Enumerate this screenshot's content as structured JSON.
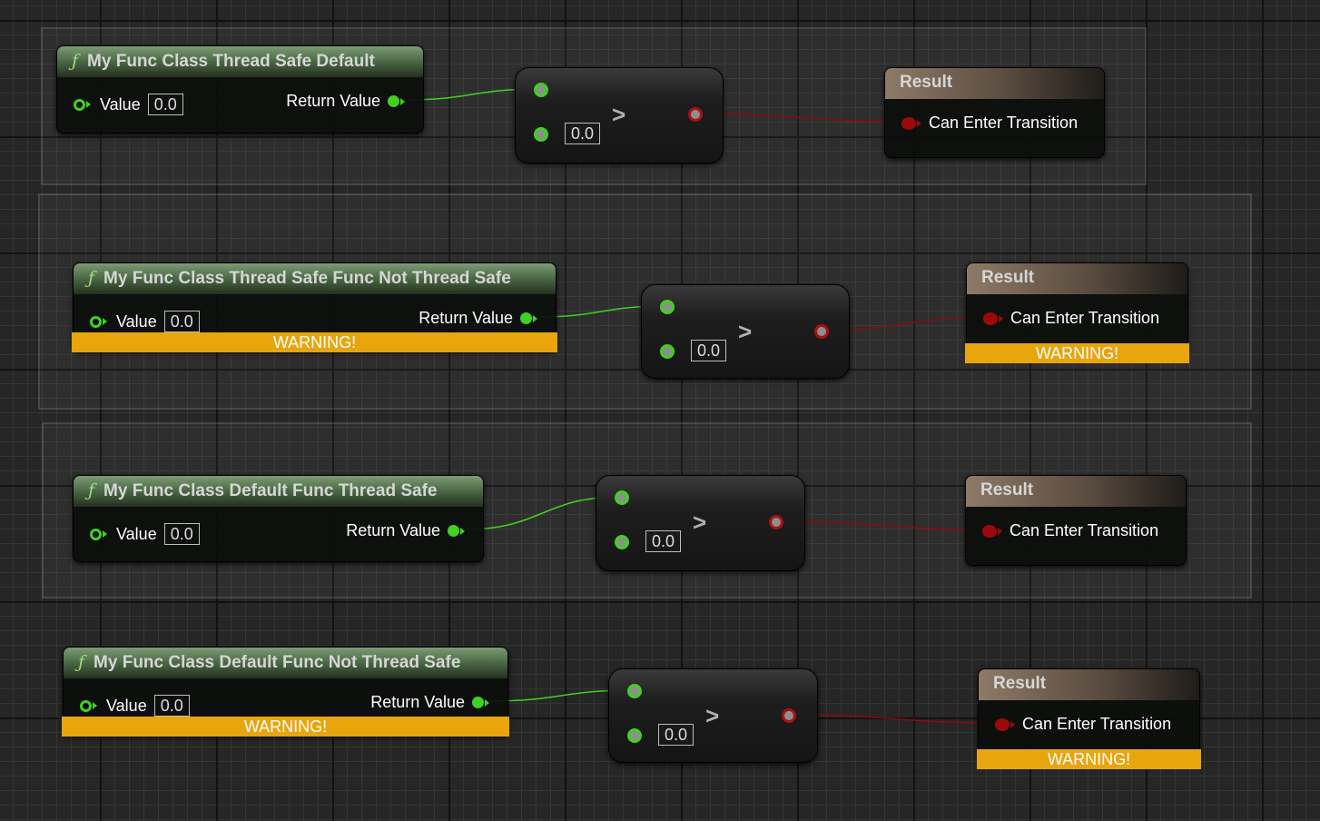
{
  "colors": {
    "bool_wire": "#8b0c0c",
    "float_wire": "#3fd21f",
    "warning": "#e8a50e"
  },
  "icons": {
    "function": "function-f-icon",
    "compare": "greater-than-icon"
  },
  "rows": [
    {
      "func_title": "My Func Class Thread Safe Default",
      "func_icon": "ƒ",
      "value_label": "Value",
      "value": "0.0",
      "return_label": "Return Value",
      "func_warning": null,
      "compare_symbol": ">",
      "compare_default": "0.0",
      "result_title": "Result",
      "result_pin": "Can Enter Transition",
      "result_warning": null
    },
    {
      "func_title": "My Func Class Thread Safe Func Not Thread Safe",
      "func_icon": "ƒ",
      "value_label": "Value",
      "value": "0.0",
      "return_label": "Return Value",
      "func_warning": "WARNING!",
      "compare_symbol": ">",
      "compare_default": "0.0",
      "result_title": "Result",
      "result_pin": "Can Enter Transition",
      "result_warning": "WARNING!"
    },
    {
      "func_title": "My Func Class Default Func Thread Safe",
      "func_icon": "ƒ",
      "value_label": "Value",
      "value": "0.0",
      "return_label": "Return Value",
      "func_warning": null,
      "compare_symbol": ">",
      "compare_default": "0.0",
      "result_title": "Result",
      "result_pin": "Can Enter Transition",
      "result_warning": null
    },
    {
      "func_title": "My Func Class Default Func Not Thread Safe",
      "func_icon": "ƒ",
      "value_label": "Value",
      "value": "0.0",
      "return_label": "Return Value",
      "func_warning": "WARNING!",
      "compare_symbol": ">",
      "compare_default": "0.0",
      "result_title": "Result",
      "result_pin": "Can Enter Transition",
      "result_warning": "WARNING!"
    }
  ]
}
